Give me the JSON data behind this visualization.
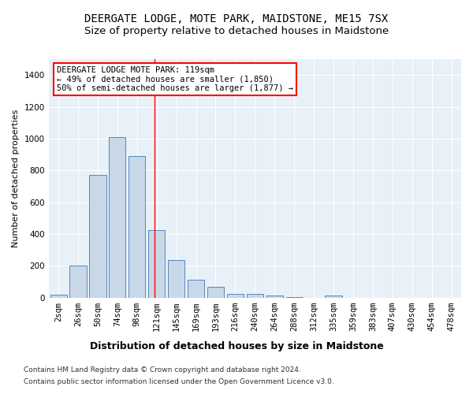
{
  "title_line1": "DEERGATE LODGE, MOTE PARK, MAIDSTONE, ME15 7SX",
  "title_line2": "Size of property relative to detached houses in Maidstone",
  "xlabel": "Distribution of detached houses by size in Maidstone",
  "ylabel": "Number of detached properties",
  "bar_labels": [
    "2sqm",
    "26sqm",
    "50sqm",
    "74sqm",
    "98sqm",
    "121sqm",
    "145sqm",
    "169sqm",
    "193sqm",
    "216sqm",
    "240sqm",
    "264sqm",
    "288sqm",
    "312sqm",
    "335sqm",
    "359sqm",
    "383sqm",
    "407sqm",
    "430sqm",
    "454sqm",
    "478sqm"
  ],
  "bar_values": [
    20,
    200,
    770,
    1010,
    890,
    425,
    235,
    110,
    70,
    25,
    25,
    15,
    5,
    0,
    15,
    0,
    0,
    0,
    0,
    0,
    0
  ],
  "bar_color": "#c8d8e8",
  "bar_edgecolor": "#5588bb",
  "background_color": "#e8f0f8",
  "vline_color": "red",
  "vline_pos": 4.88,
  "annotation_text": "DEERGATE LODGE MOTE PARK: 119sqm\n← 49% of detached houses are smaller (1,850)\n50% of semi-detached houses are larger (1,877) →",
  "ylim": [
    0,
    1500
  ],
  "yticks": [
    0,
    200,
    400,
    600,
    800,
    1000,
    1200,
    1400
  ],
  "footnote_line1": "Contains HM Land Registry data © Crown copyright and database right 2024.",
  "footnote_line2": "Contains public sector information licensed under the Open Government Licence v3.0.",
  "title_fontsize": 10,
  "subtitle_fontsize": 9.5,
  "ylabel_fontsize": 8,
  "xlabel_fontsize": 9,
  "tick_fontsize": 7.5,
  "annotation_fontsize": 7.5,
  "footnote_fontsize": 6.5
}
